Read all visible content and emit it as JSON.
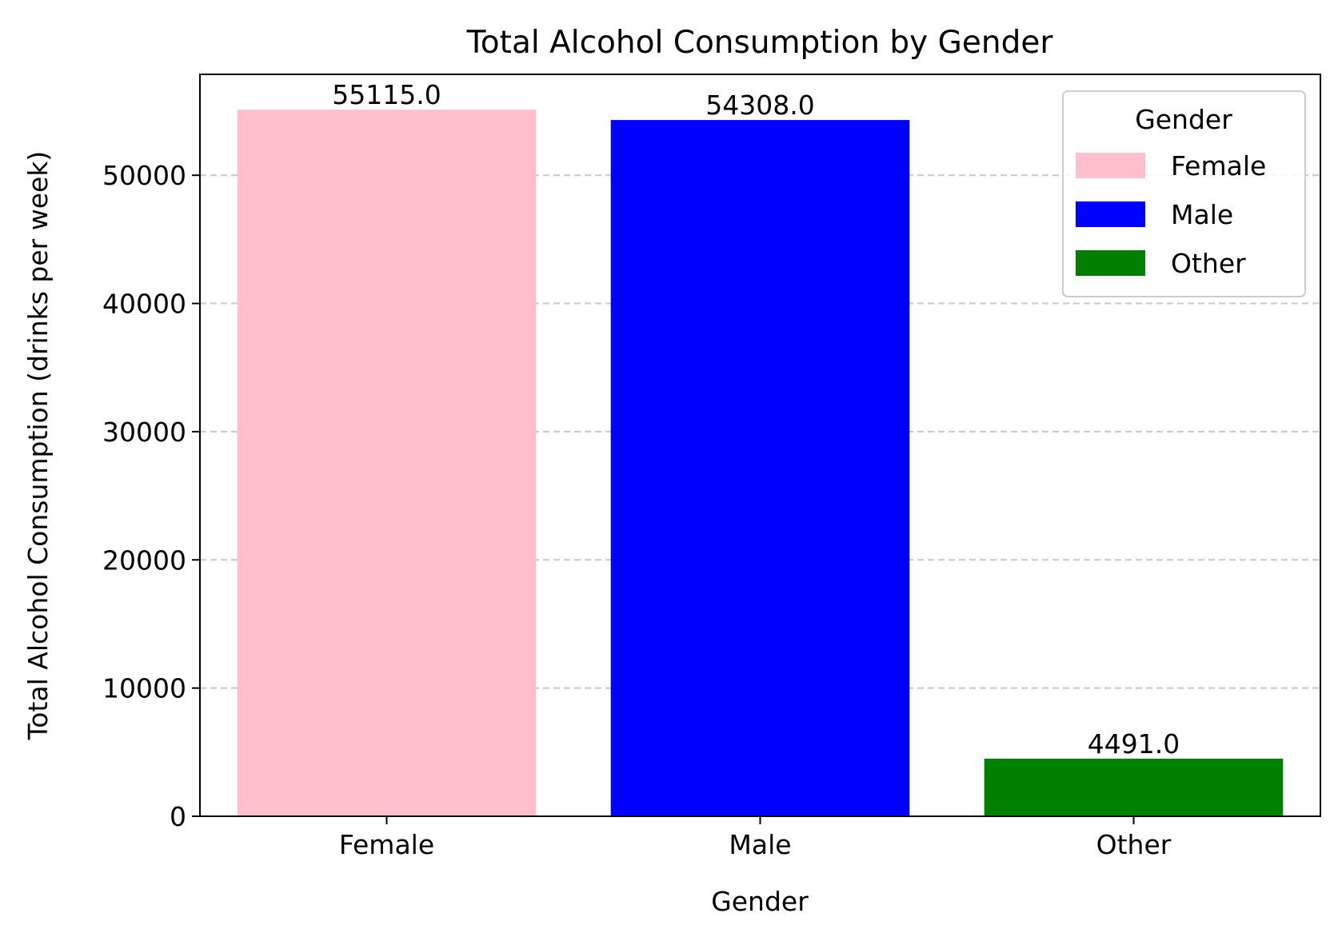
{
  "chart_data": {
    "type": "bar",
    "title": "Total Alcohol Consumption by Gender",
    "xlabel": "Gender",
    "ylabel": "Total Alcohol Consumption (drinks per week)",
    "categories": [
      "Female",
      "Male",
      "Other"
    ],
    "values": [
      55115.0,
      54308.0,
      4491.0
    ],
    "value_labels": [
      "55115.0",
      "54308.0",
      "4491.0"
    ],
    "colors": [
      "#ffc0cb",
      "#0000ff",
      "#008000"
    ],
    "ylim": [
      0,
      57870
    ],
    "yticks": [
      0,
      10000,
      20000,
      30000,
      40000,
      50000
    ],
    "grid": "y-dashed",
    "legend": {
      "title": "Gender",
      "placement": "top-right",
      "entries": [
        "Female",
        "Male",
        "Other"
      ]
    }
  }
}
